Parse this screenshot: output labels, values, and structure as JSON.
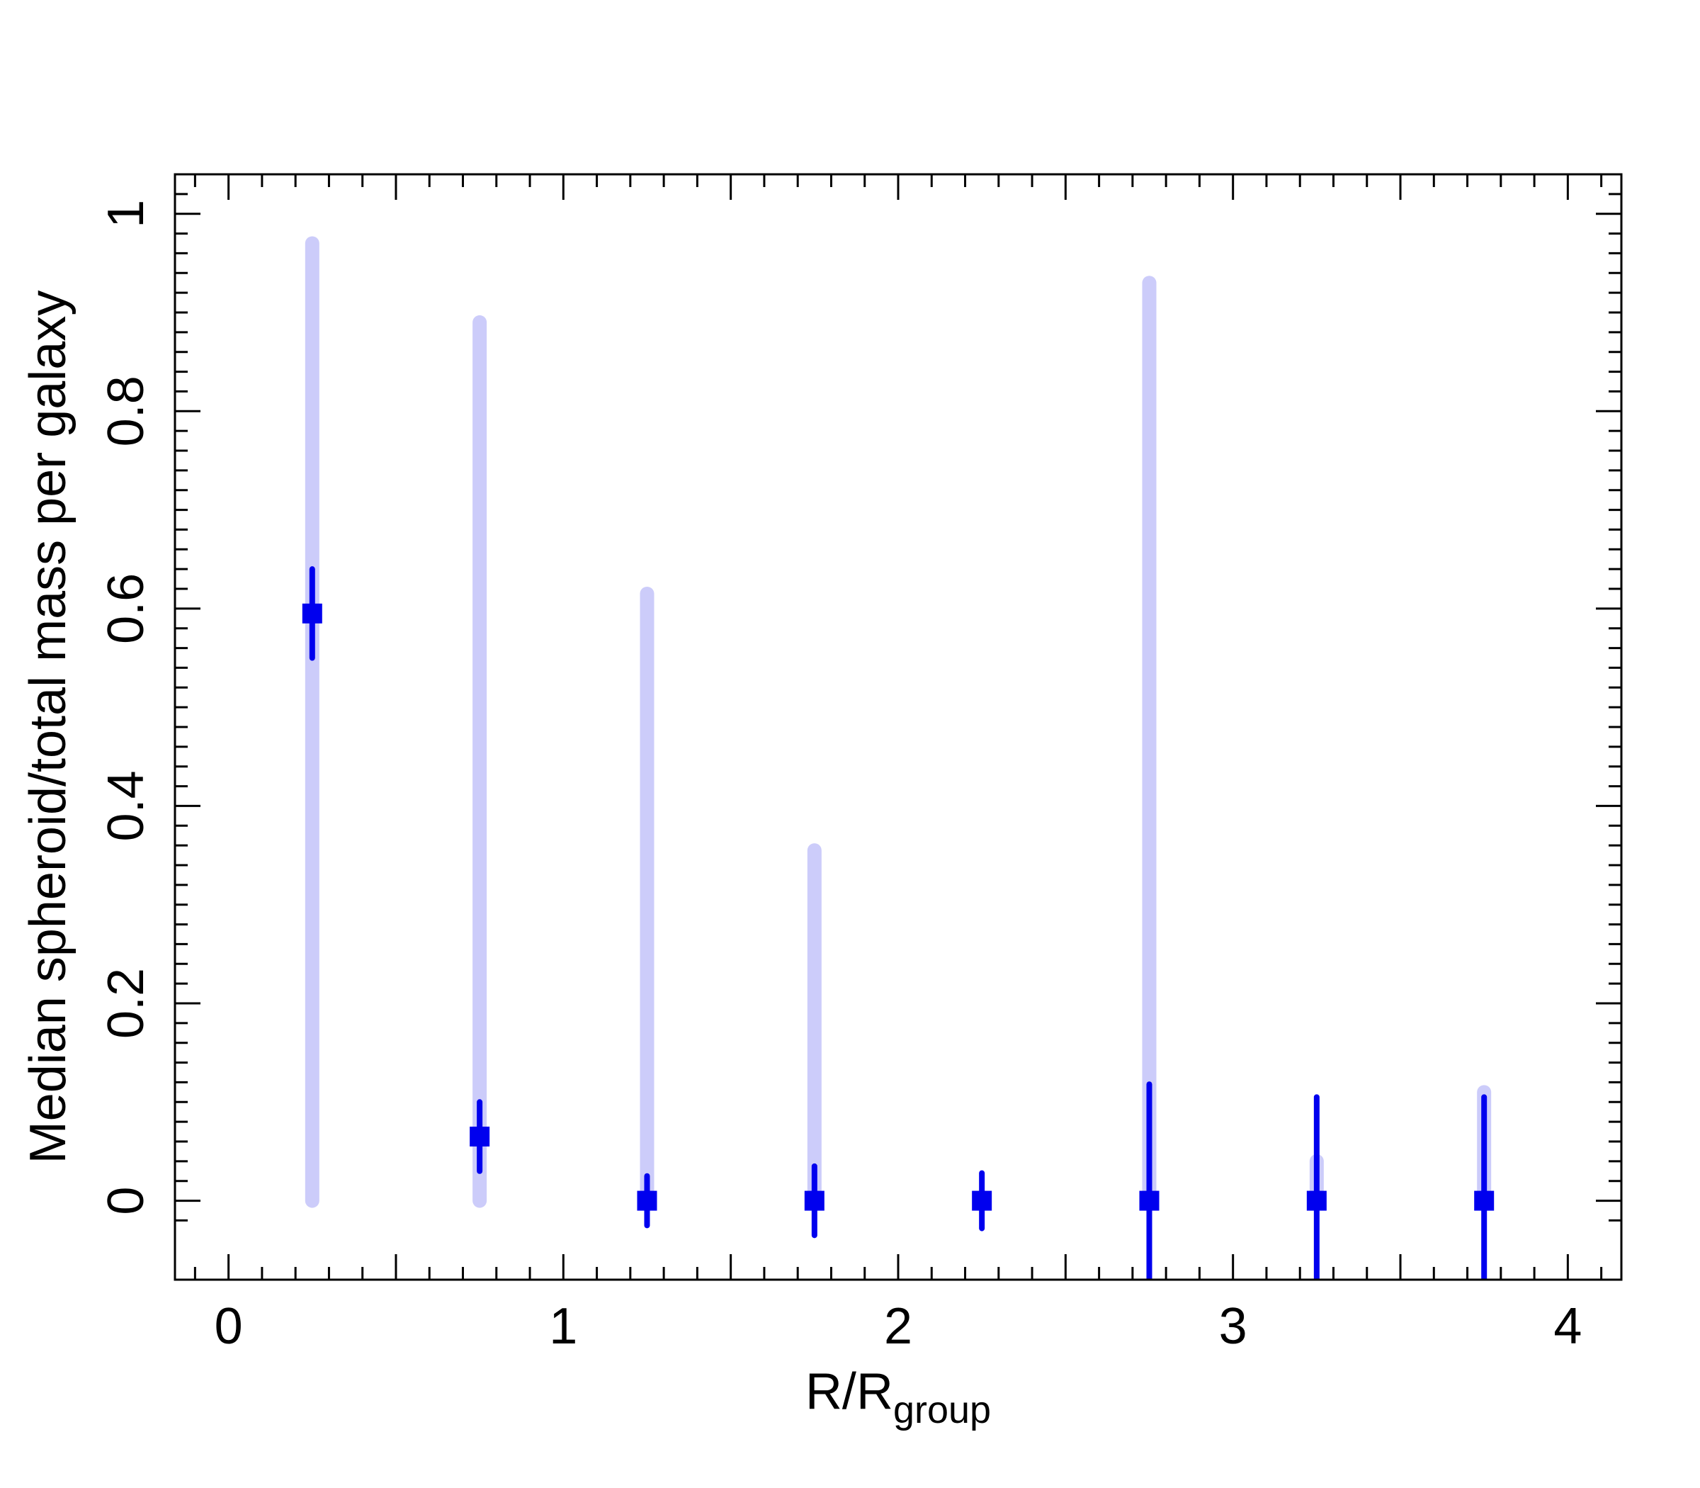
{
  "chart_data": {
    "type": "scatter",
    "xlabel": {
      "main": "R/R",
      "sub": "group"
    },
    "ylabel": "Median spheroid/total mass per galaxy",
    "xlim": [
      -0.16,
      4.16
    ],
    "ylim": [
      -0.08,
      1.04
    ],
    "xticks": [
      {
        "value": 0,
        "label": "0"
      },
      {
        "value": 1,
        "label": "1"
      },
      {
        "value": 2,
        "label": "2"
      },
      {
        "value": 3,
        "label": "3"
      },
      {
        "value": 4,
        "label": "4"
      }
    ],
    "yticks": [
      {
        "value": 0,
        "label": "0"
      },
      {
        "value": 0.2,
        "label": "0.2"
      },
      {
        "value": 0.4,
        "label": "0.4"
      },
      {
        "value": 0.6,
        "label": "0.6"
      },
      {
        "value": 0.8,
        "label": "0.8"
      },
      {
        "value": 1,
        "label": "1"
      }
    ],
    "colors": {
      "median": "#0000ee",
      "range": "#ccccfa",
      "axis": "#000000"
    },
    "points": [
      {
        "x": 0.25,
        "y": 0.595,
        "err_lo": 0.55,
        "err_hi": 0.64,
        "range_lo": 0.0,
        "range_hi": 0.97
      },
      {
        "x": 0.75,
        "y": 0.065,
        "err_lo": 0.03,
        "err_hi": 0.1,
        "range_lo": 0.0,
        "range_hi": 0.89
      },
      {
        "x": 1.25,
        "y": 0.0,
        "err_lo": -0.025,
        "err_hi": 0.025,
        "range_lo": 0.0,
        "range_hi": 0.615
      },
      {
        "x": 1.75,
        "y": 0.0,
        "err_lo": -0.035,
        "err_hi": 0.035,
        "range_lo": 0.0,
        "range_hi": 0.355
      },
      {
        "x": 2.25,
        "y": 0.0,
        "err_lo": -0.028,
        "err_hi": 0.028,
        "range_lo": 0.0,
        "range_hi": 0.0
      },
      {
        "x": 2.75,
        "y": 0.0,
        "err_lo": -0.12,
        "err_hi": 0.118,
        "range_lo": 0.0,
        "range_hi": 0.93
      },
      {
        "x": 3.25,
        "y": 0.0,
        "err_lo": -0.11,
        "err_hi": 0.105,
        "range_lo": 0.0,
        "range_hi": 0.04
      },
      {
        "x": 3.75,
        "y": 0.0,
        "err_lo": -0.11,
        "err_hi": 0.105,
        "range_lo": 0.0,
        "range_hi": 0.11
      }
    ]
  }
}
